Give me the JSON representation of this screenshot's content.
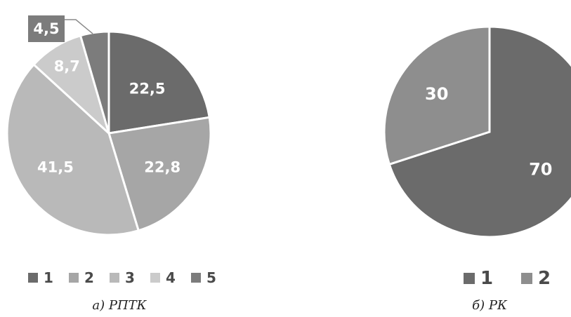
{
  "chart_data": [
    {
      "type": "pie",
      "title": "",
      "caption": "а) РПТК",
      "categories": [
        "1",
        "2",
        "3",
        "4",
        "5"
      ],
      "values": [
        22.5,
        22.8,
        41.5,
        8.7,
        4.5
      ],
      "value_labels": [
        "22,5",
        "22,8",
        "41,5",
        "8,7",
        "4,5"
      ],
      "colors": [
        "#6b6b6b",
        "#a6a6a6",
        "#b9b9b9",
        "#cbcbcb",
        "#7c7c7c"
      ],
      "start_angle_deg": 0,
      "direction": "clockwise",
      "legend_position": "bottom"
    },
    {
      "type": "pie",
      "title": "",
      "caption": "б) РК",
      "categories": [
        "1",
        "2"
      ],
      "values": [
        70,
        30
      ],
      "value_labels": [
        "70",
        "30"
      ],
      "colors": [
        "#6b6b6b",
        "#8e8e8e"
      ],
      "start_angle_deg": 0,
      "direction": "clockwise",
      "legend_position": "bottom"
    }
  ]
}
